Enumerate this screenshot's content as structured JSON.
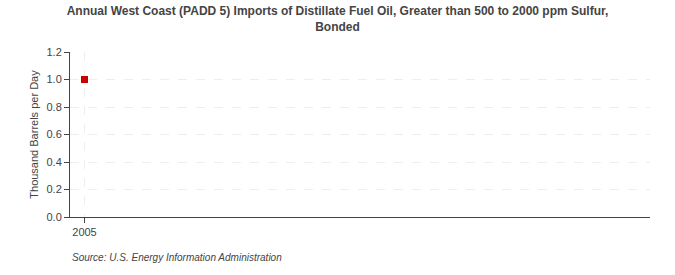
{
  "chart_data": {
    "type": "scatter",
    "title": "Annual West Coast (PADD 5) Imports of Distillate Fuel Oil, Greater than 500 to 2000 ppm Sulfur,\nBonded",
    "ylabel": "Thousand Barrels per Day",
    "source": "Source: U.S. Energy Information Administration",
    "x": [
      2005
    ],
    "values": [
      1.0
    ],
    "color": "#cc0000",
    "marker": "square",
    "xlim": [
      2004.5,
      2024.5
    ],
    "xticks": [
      2005
    ],
    "ylim": [
      0.0,
      1.2
    ],
    "yticks": [
      {
        "value": 0.0,
        "label": "0.0"
      },
      0.2,
      0.4,
      0.6,
      0.8,
      {
        "value": 1.0,
        "label": "1.0"
      },
      1.2
    ],
    "grid": true
  }
}
